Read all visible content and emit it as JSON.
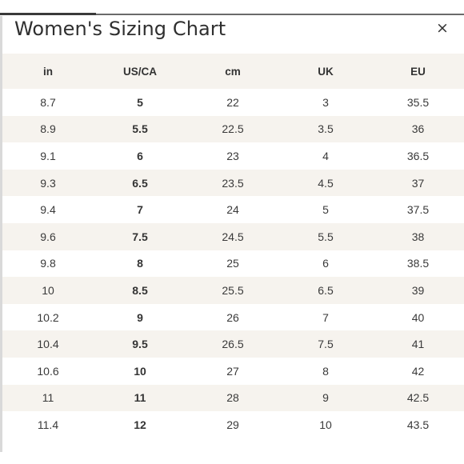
{
  "modal": {
    "title": "Women's Sizing Chart",
    "close_label": "×"
  },
  "table": {
    "headers": [
      "in",
      "US/CA",
      "cm",
      "UK",
      "EU"
    ],
    "rows": [
      [
        "8.7",
        "5",
        "22",
        "3",
        "35.5"
      ],
      [
        "8.9",
        "5.5",
        "22.5",
        "3.5",
        "36"
      ],
      [
        "9.1",
        "6",
        "23",
        "4",
        "36.5"
      ],
      [
        "9.3",
        "6.5",
        "23.5",
        "4.5",
        "37"
      ],
      [
        "9.4",
        "7",
        "24",
        "5",
        "37.5"
      ],
      [
        "9.6",
        "7.5",
        "24.5",
        "5.5",
        "38"
      ],
      [
        "9.8",
        "8",
        "25",
        "6",
        "38.5"
      ],
      [
        "10",
        "8.5",
        "25.5",
        "6.5",
        "39"
      ],
      [
        "10.2",
        "9",
        "26",
        "7",
        "40"
      ],
      [
        "10.4",
        "9.5",
        "26.5",
        "7.5",
        "41"
      ],
      [
        "10.6",
        "10",
        "27",
        "8",
        "42"
      ],
      [
        "11",
        "11",
        "28",
        "9",
        "42.5"
      ],
      [
        "11.4",
        "12",
        "29",
        "10",
        "43.5"
      ]
    ]
  },
  "colors": {
    "stripe": "#f6f3ee",
    "text": "#3a3a3a",
    "title": "#2f2f2f"
  }
}
